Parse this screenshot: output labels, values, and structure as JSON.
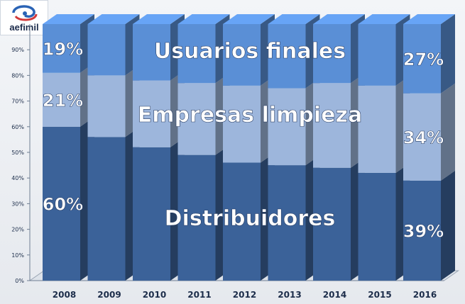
{
  "logo": {
    "text": "aefimil",
    "icon": "aefimil-swirl-logo-icon"
  },
  "chart_data": {
    "type": "bar",
    "stacked": true,
    "normalized": true,
    "title": "",
    "xlabel": "",
    "ylabel": "",
    "categories": [
      "2008",
      "2009",
      "2010",
      "2011",
      "2012",
      "2013",
      "2014",
      "2015",
      "2016"
    ],
    "ylim": [
      0,
      100
    ],
    "yticks": [
      "0%",
      "10%",
      "20%",
      "30%",
      "40%",
      "50%",
      "60%",
      "70%",
      "80%",
      "90%"
    ],
    "series": [
      {
        "name": "Distribuidores",
        "color": "#3b6299",
        "values": [
          60,
          56,
          52,
          49,
          46,
          45,
          44,
          42,
          39
        ]
      },
      {
        "name": "Empresas limpieza",
        "color": "#9db6dc",
        "values": [
          21,
          24,
          26,
          28,
          30,
          30,
          33,
          34,
          34
        ]
      },
      {
        "name": "Usuarios finales",
        "color": "#5a8fd6",
        "values": [
          19,
          20,
          22,
          23,
          24,
          25,
          23,
          24,
          27
        ]
      }
    ],
    "data_labels": [
      {
        "category": "2008",
        "series": "Usuarios finales",
        "text": "19%"
      },
      {
        "category": "2008",
        "series": "Empresas limpieza",
        "text": "21%"
      },
      {
        "category": "2008",
        "series": "Distribuidores",
        "text": "60%"
      },
      {
        "category": "2016",
        "series": "Usuarios finales",
        "text": "27%"
      },
      {
        "category": "2016",
        "series": "Empresas limpieza",
        "text": "34%"
      },
      {
        "category": "2016",
        "series": "Distribuidores",
        "text": "39%"
      }
    ],
    "grid": false,
    "legend": "none"
  }
}
